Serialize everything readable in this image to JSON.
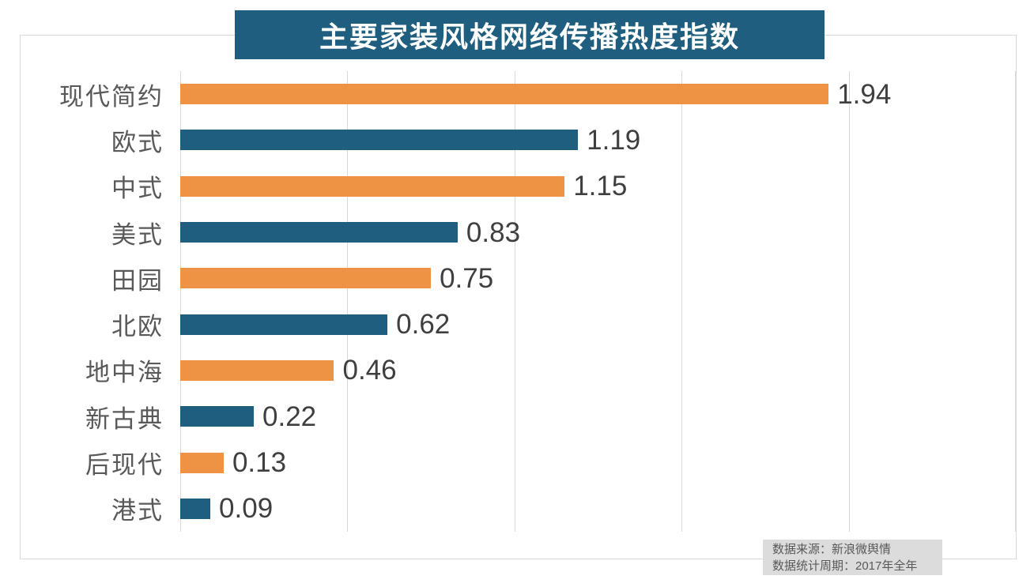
{
  "title": "主要家装风格网络传播热度指数",
  "source_note": {
    "line1": "数据来源：新浪微舆情",
    "line2": "数据统计周期：2017年全年"
  },
  "colors": {
    "orange": "#EE9344",
    "blue": "#1F5E7E",
    "title_bg": "#1F5E7E",
    "title_text": "#FFFFFF",
    "grid": "#D9D9D9",
    "frame_border": "#D9D9D9",
    "category_text": "#595959",
    "value_text": "#3F3F3F",
    "source_bg": "#DCDCDC",
    "source_text": "#595959"
  },
  "chart_data": {
    "type": "bar",
    "orientation": "horizontal",
    "title": "主要家装风格网络传播热度指数",
    "categories": [
      "现代简约",
      "欧式",
      "中式",
      "美式",
      "田园",
      "北欧",
      "地中海",
      "新古典",
      "后现代",
      "港式"
    ],
    "values": [
      1.94,
      1.19,
      1.15,
      0.83,
      0.75,
      0.62,
      0.46,
      0.22,
      0.13,
      0.09
    ],
    "value_labels": [
      "1.94",
      "1.19",
      "1.15",
      "0.83",
      "0.75",
      "0.62",
      "0.46",
      "0.22",
      "0.13",
      "0.09"
    ],
    "bar_color_pattern": [
      "orange",
      "blue"
    ],
    "xlabel": "",
    "ylabel": "",
    "xlim": [
      0,
      2.5
    ],
    "gridline_step": 0.5,
    "grid": true,
    "legend": "none",
    "value_labels_position": "end-of-bar"
  }
}
